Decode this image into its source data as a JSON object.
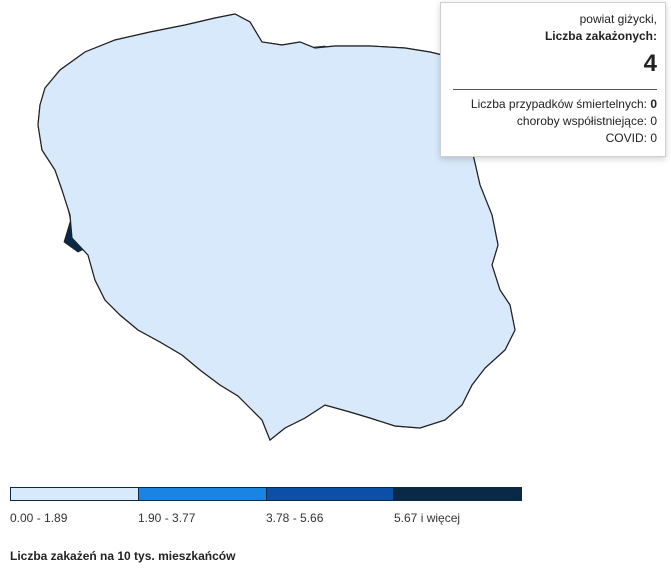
{
  "tooltip": {
    "region": "powiat giżycki,",
    "cases_label": "Liczba zakażonych:",
    "cases_value": "4",
    "deaths_label": "Liczba przypadków śmiertelnych:",
    "deaths_value": "0",
    "comorbid_label": "choroby współistniejące:",
    "comorbid_value": "0",
    "covid_label": "COVID:",
    "covid_value": "0"
  },
  "legend": {
    "title": "Liczba zakażeń na 10 tys. mieszkańców",
    "bins": [
      {
        "label": "0.00 - 1.89",
        "color": "#d7e9fa"
      },
      {
        "label": "1.90 - 3.77",
        "color": "#1a84e4"
      },
      {
        "label": "3.78 - 5.66",
        "color": "#0b4fa6"
      },
      {
        "label": "5.67 i więcej",
        "color": "#0a2947"
      }
    ]
  },
  "map_colors": {
    "land": "#d7e9fa",
    "border": "#222222",
    "bin1": "#1a84e4",
    "bin2": "#0b4fa6",
    "bin3": "#0a2947"
  }
}
